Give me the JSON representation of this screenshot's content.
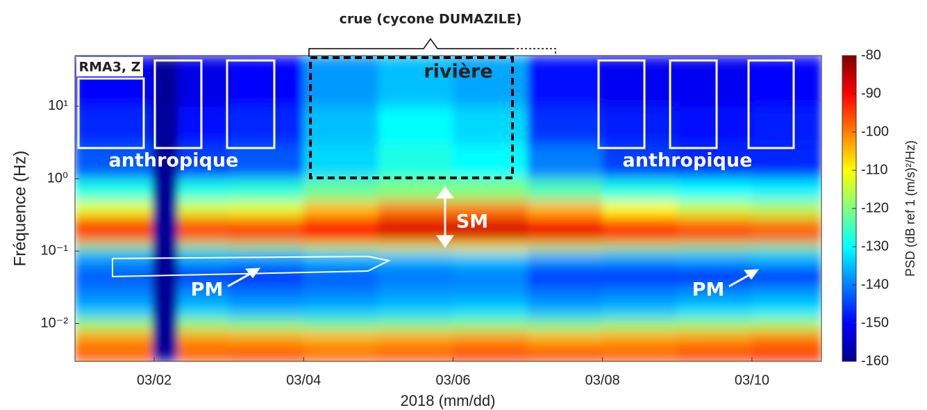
{
  "chart_data": {
    "type": "spectrogram",
    "title": "crue (cycone DUMAZILE)",
    "x_label": "2018 (mm/dd)",
    "y_label": "Fréquence (Hz)",
    "colorbar_label": "PSD (dB ref 1 (m/s)²/Hz)",
    "colormap": "jet",
    "y_log": true,
    "xlim": [
      0.94,
      10.93
    ],
    "xticks": [
      {
        "value": 2,
        "label": "03/02"
      },
      {
        "value": 4,
        "label": "03/04"
      },
      {
        "value": 6,
        "label": "03/06"
      },
      {
        "value": 8,
        "label": "03/08"
      },
      {
        "value": 10,
        "label": "03/10"
      }
    ],
    "ylim": [
      0.003,
      50
    ],
    "yticks": [
      {
        "value": 0.01,
        "label": "10⁻²"
      },
      {
        "value": 0.1,
        "label": "10⁻¹"
      },
      {
        "value": 1,
        "label": "10⁰"
      },
      {
        "value": 10,
        "label": "10¹"
      }
    ],
    "clim": [
      -160,
      -80
    ],
    "cticks": [
      -160,
      -150,
      -140,
      -130,
      -120,
      -110,
      -100,
      -90,
      -80
    ],
    "time_bins": [
      0.94,
      1.98,
      2.32,
      3,
      4,
      5,
      6,
      7,
      8,
      9,
      10,
      10.93
    ],
    "freq_bins": [
      0.003,
      0.005,
      0.008,
      0.012,
      0.02,
      0.035,
      0.06,
      0.1,
      0.13,
      0.2,
      0.3,
      0.5,
      1,
      3,
      10,
      50
    ],
    "psd": [
      [
        -97,
        -158,
        -97,
        -96,
        -98,
        -97,
        -95,
        -96,
        -97,
        -95,
        -94
      ],
      [
        -102,
        -158,
        -102,
        -103,
        -104,
        -103,
        -102,
        -104,
        -103,
        -102,
        -100
      ],
      [
        -118,
        -158,
        -118,
        -120,
        -122,
        -121,
        -120,
        -121,
        -119,
        -118,
        -117
      ],
      [
        -135,
        -158,
        -134,
        -136,
        -135,
        -134,
        -133,
        -136,
        -135,
        -133,
        -132
      ],
      [
        -140,
        -158,
        -139,
        -141,
        -140,
        -138,
        -138,
        -141,
        -140,
        -139,
        -138
      ],
      [
        -143,
        -158,
        -146,
        -147,
        -143,
        -141,
        -140,
        -146,
        -147,
        -148,
        -147
      ],
      [
        -138,
        -158,
        -137,
        -138,
        -136,
        -136,
        -135,
        -138,
        -138,
        -137,
        -136
      ],
      [
        -122,
        -158,
        -122,
        -120,
        -116,
        -112,
        -110,
        -114,
        -118,
        -120,
        -122
      ],
      [
        -96,
        -158,
        -96,
        -94,
        -90,
        -87,
        -86,
        -88,
        -92,
        -94,
        -95
      ],
      [
        -94,
        -158,
        -96,
        -97,
        -92,
        -88,
        -88,
        -90,
        -95,
        -98,
        -100
      ],
      [
        -112,
        -158,
        -113,
        -112,
        -105,
        -100,
        -100,
        -104,
        -110,
        -114,
        -116
      ],
      [
        -128,
        -158,
        -128,
        -127,
        -122,
        -120,
        -120,
        -124,
        -128,
        -130,
        -131
      ],
      [
        -143,
        -158,
        -145,
        -143,
        -133,
        -128,
        -130,
        -140,
        -145,
        -147,
        -147
      ],
      [
        -147,
        -158,
        -149,
        -147,
        -135,
        -130,
        -133,
        -146,
        -148,
        -149,
        -148
      ],
      [
        -150,
        -158,
        -152,
        -150,
        -138,
        -135,
        -137,
        -149,
        -151,
        -151,
        -150
      ]
    ],
    "annotations": {
      "station": "RMA3, Z",
      "river": "rivière",
      "anthropic_left": "anthropique",
      "anthropic_right": "anthropique",
      "sm": "SM",
      "pm_left": "PM",
      "pm_right": "PM"
    }
  }
}
